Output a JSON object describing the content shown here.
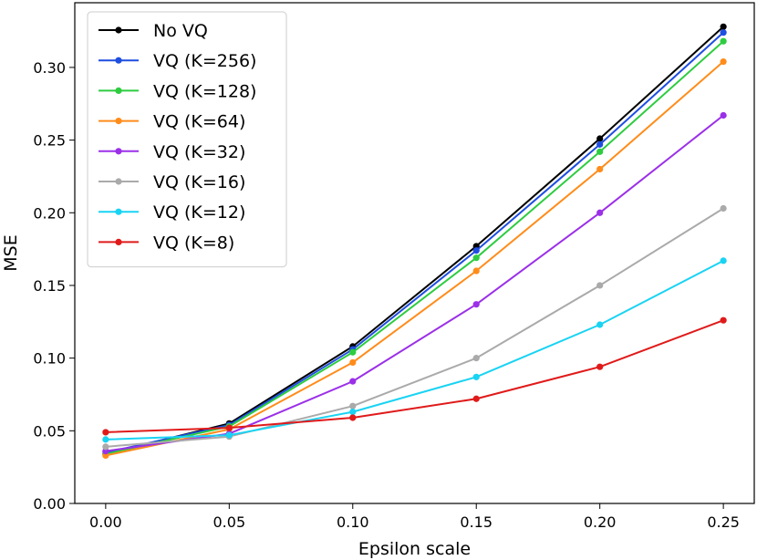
{
  "chart_data": {
    "type": "line",
    "title": "",
    "xlabel": "Epsilon scale",
    "ylabel": "MSE",
    "x": [
      0.0,
      0.05,
      0.1,
      0.15,
      0.2,
      0.25
    ],
    "x_tick_labels": [
      "0.00",
      "0.05",
      "0.10",
      "0.15",
      "0.20",
      "0.25"
    ],
    "y_ticks": [
      0.0,
      0.05,
      0.1,
      0.15,
      0.2,
      0.25,
      0.3
    ],
    "y_tick_labels": [
      "0.00",
      "0.05",
      "0.10",
      "0.15",
      "0.20",
      "0.25",
      "0.30"
    ],
    "xlim": [
      -0.0125,
      0.2625
    ],
    "ylim": [
      0.0,
      0.3445
    ],
    "grid": false,
    "legend_location": "top-left",
    "series": [
      {
        "name": "No VQ",
        "color": "#000000",
        "values": [
          0.034,
          0.055,
          0.108,
          0.177,
          0.251,
          0.328
        ]
      },
      {
        "name": "VQ (K=256)",
        "color": "#1f4fe0",
        "values": [
          0.035,
          0.054,
          0.106,
          0.174,
          0.247,
          0.324
        ]
      },
      {
        "name": "VQ (K=128)",
        "color": "#2ecc40",
        "values": [
          0.034,
          0.053,
          0.104,
          0.169,
          0.242,
          0.318
        ]
      },
      {
        "name": "VQ (K=64)",
        "color": "#ff8c1a",
        "values": [
          0.033,
          0.051,
          0.097,
          0.16,
          0.23,
          0.304
        ]
      },
      {
        "name": "VQ (K=32)",
        "color": "#9b30e8",
        "values": [
          0.036,
          0.048,
          0.084,
          0.137,
          0.2,
          0.267
        ]
      },
      {
        "name": "VQ (K=16)",
        "color": "#aaaaaa",
        "values": [
          0.039,
          0.046,
          0.067,
          0.1,
          0.15,
          0.203
        ]
      },
      {
        "name": "VQ (K=12)",
        "color": "#19d3f3",
        "values": [
          0.044,
          0.047,
          0.063,
          0.087,
          0.123,
          0.167
        ]
      },
      {
        "name": "VQ (K=8)",
        "color": "#e01a1a",
        "values": [
          0.049,
          0.052,
          0.059,
          0.072,
          0.094,
          0.126
        ]
      }
    ]
  }
}
